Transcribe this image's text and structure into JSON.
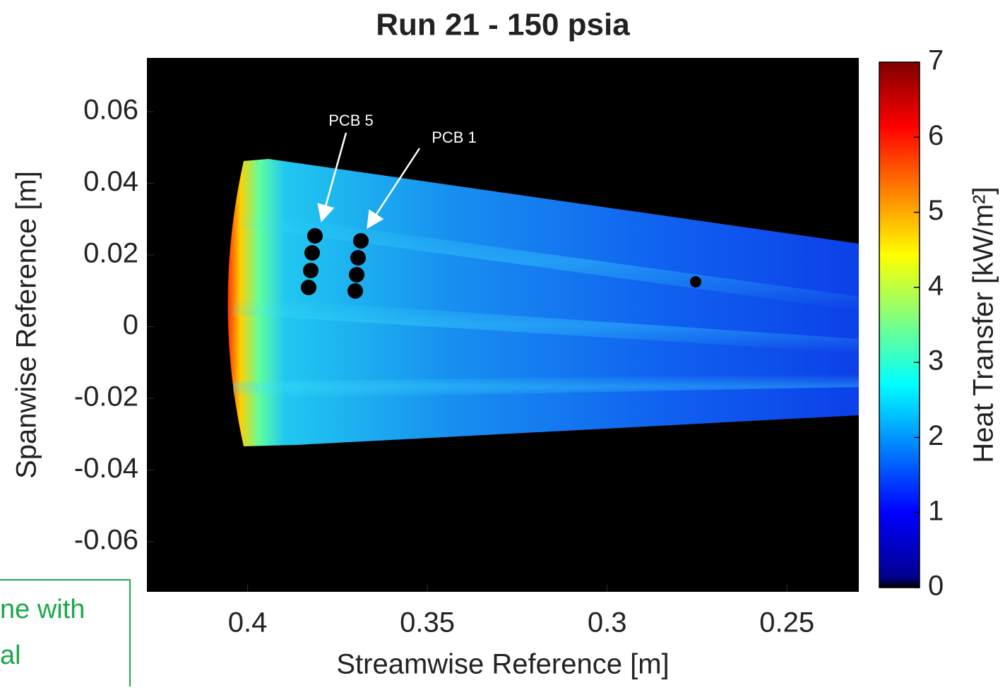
{
  "chart_data": {
    "type": "heatmap",
    "title": "Run 21 - 150 psia",
    "x_label": "Streamwise Reference [m]",
    "y_label": "Spanwise Reference [m]",
    "xlim": [
      0.428,
      0.23
    ],
    "xticks": [
      0.4,
      0.35,
      0.3,
      0.25
    ],
    "ylim": [
      -0.074,
      0.075
    ],
    "yticks": [
      0.06,
      0.04,
      0.02,
      0,
      -0.02,
      -0.04,
      -0.06
    ],
    "colormap": "jet",
    "colorbar": {
      "label": "Heat Transfer [kW/m²]",
      "lim": [
        0,
        7
      ],
      "ticks": [
        0,
        1,
        2,
        3,
        4,
        5,
        6,
        7
      ]
    },
    "annotations": [
      "PCB 5",
      "PCB 1"
    ],
    "note_lines": [
      "ne with",
      "al"
    ]
  }
}
